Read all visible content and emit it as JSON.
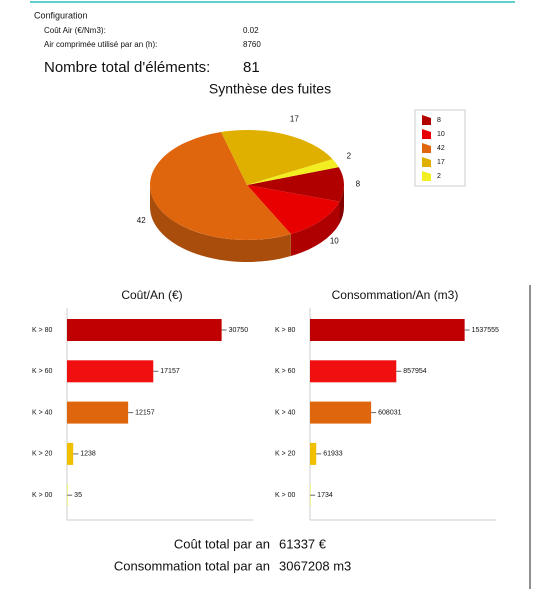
{
  "configuration": {
    "title": "Configuration",
    "rows": [
      {
        "label": "Coût Air (€/Nm3):",
        "value": 0.02
      },
      {
        "label": "Air comprimée utilisé par an (h):",
        "value": 8760
      }
    ],
    "total_label": "Nombre total d'éléments:",
    "total_value": 81
  },
  "chart_data": [
    {
      "type": "pie",
      "title": "Synthèse des fuites",
      "values": [
        8,
        10,
        42,
        17,
        2
      ],
      "colors": [
        "#b00000",
        "#e80000",
        "#e0660e",
        "#e0b000",
        "#f2ee22"
      ],
      "legend": "right"
    },
    {
      "type": "hbar",
      "title": "Coût/An (€)",
      "categories": [
        "K > 80",
        "K > 60",
        "K > 40",
        "K > 20",
        "K > 00"
      ],
      "values": [
        30750,
        17157,
        12157,
        1238,
        35
      ],
      "colors": [
        "#c00000",
        "#f01010",
        "#e0660e",
        "#f0c000",
        "#f2ee22"
      ],
      "xlim": [
        0,
        35000
      ]
    },
    {
      "type": "hbar",
      "title": "Consommation/An (m3)",
      "categories": [
        "K > 80",
        "K > 60",
        "K > 40",
        "K > 20",
        "K > 00"
      ],
      "values": [
        1537555,
        857954,
        608031,
        61933,
        1734
      ],
      "colors": [
        "#c00000",
        "#f01010",
        "#e0660e",
        "#f0c000",
        "#f2ee22"
      ],
      "xlim": [
        0,
        1750000
      ]
    }
  ],
  "totals": [
    {
      "label": "Coût total par an",
      "value": "61337 €"
    },
    {
      "label": "Consommation total par an",
      "value": "3067208 m3"
    }
  ]
}
